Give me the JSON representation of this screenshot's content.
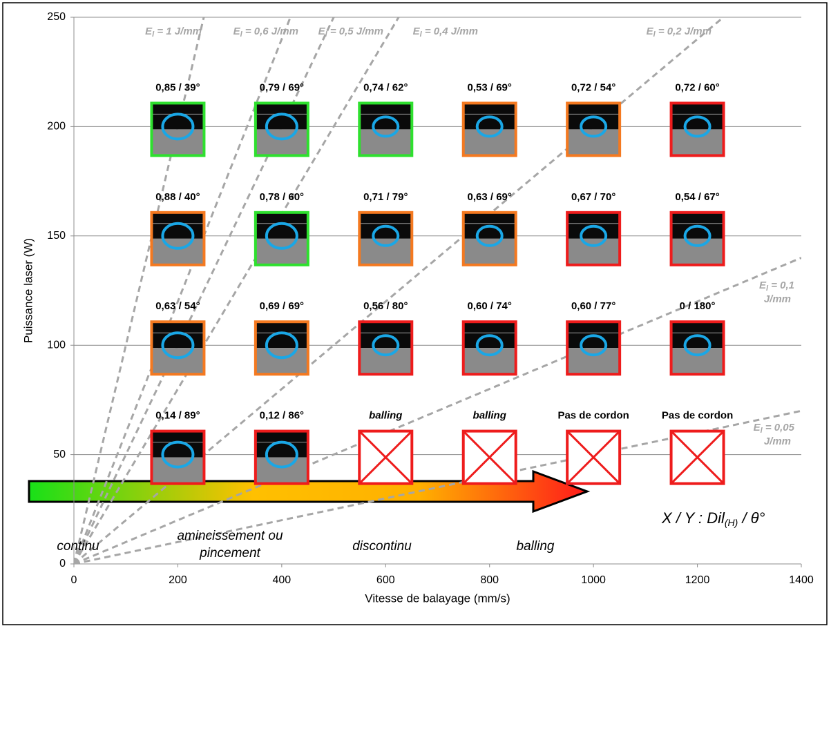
{
  "chart_data": {
    "type": "scatter",
    "x_label": "Vitesse de balayage (mm/s)",
    "y_label": "Puissance laser (W)",
    "xlim": [
      0,
      1400
    ],
    "xticks": [
      0,
      200,
      400,
      600,
      800,
      1000,
      1200,
      1400
    ],
    "ylim": [
      0,
      250
    ],
    "yticks": [
      0,
      50,
      100,
      150,
      200,
      250
    ],
    "grid": true,
    "energy_lines": [
      {
        "value": 1,
        "prefix": "E",
        "subscript": "l",
        "lines": [
          " = 1 J/mm"
        ]
      },
      {
        "value": 0.6,
        "prefix": "E",
        "subscript": "l",
        "lines": [
          " = 0,6 J/mm"
        ]
      },
      {
        "value": 0.5,
        "prefix": "E",
        "subscript": "l",
        "lines": [
          " = 0,5 J/mm"
        ]
      },
      {
        "value": 0.4,
        "prefix": "E",
        "subscript": "l",
        "lines": [
          " = 0,4 J/mm"
        ]
      },
      {
        "value": 0.2,
        "prefix": "E",
        "subscript": "l",
        "lines": [
          " = 0,2 J/mm"
        ]
      },
      {
        "value": 0.1,
        "prefix": "E",
        "subscript": "l",
        "lines": [
          " = 0,1",
          "J/mm"
        ]
      },
      {
        "value": 0.05,
        "prefix": "E",
        "subscript": "l",
        "lines": [
          " = 0,05",
          "J/mm"
        ]
      }
    ],
    "points": [
      {
        "x": 200,
        "y": 200,
        "label": "0,85 / 39°",
        "color": "#2ee02e",
        "image": true
      },
      {
        "x": 400,
        "y": 200,
        "label": "0,79 / 69°",
        "color": "#2ee02e",
        "image": true
      },
      {
        "x": 600,
        "y": 200,
        "label": "0,74 / 62°",
        "color": "#2ee02e",
        "image": true
      },
      {
        "x": 800,
        "y": 200,
        "label": "0,53 / 69°",
        "color": "#f47920",
        "image": true
      },
      {
        "x": 1000,
        "y": 200,
        "label": "0,72 / 54°",
        "color": "#f47920",
        "image": true
      },
      {
        "x": 1200,
        "y": 200,
        "label": "0,72 / 60°",
        "color": "#ee1c1c",
        "image": true
      },
      {
        "x": 200,
        "y": 150,
        "label": "0,88 / 40°",
        "color": "#f47920",
        "image": true
      },
      {
        "x": 400,
        "y": 150,
        "label": "0,78 / 60°",
        "color": "#2ee02e",
        "image": true
      },
      {
        "x": 600,
        "y": 150,
        "label": "0,71 / 79°",
        "color": "#f47920",
        "image": true
      },
      {
        "x": 800,
        "y": 150,
        "label": "0,63 / 69°",
        "color": "#f47920",
        "image": true
      },
      {
        "x": 1000,
        "y": 150,
        "label": "0,67 / 70°",
        "color": "#ee1c1c",
        "image": true
      },
      {
        "x": 1200,
        "y": 150,
        "label": "0,54 / 67°",
        "color": "#ee1c1c",
        "image": true
      },
      {
        "x": 200,
        "y": 100,
        "label": "0,63 / 54°",
        "color": "#f47920",
        "image": true
      },
      {
        "x": 400,
        "y": 100,
        "label": "0,69 / 69°",
        "color": "#f47920",
        "image": true
      },
      {
        "x": 600,
        "y": 100,
        "label": "0,56 / 80°",
        "color": "#ee1c1c",
        "image": true
      },
      {
        "x": 800,
        "y": 100,
        "label": "0,60 / 74°",
        "color": "#ee1c1c",
        "image": true
      },
      {
        "x": 1000,
        "y": 100,
        "label": "0,60 / 77°",
        "color": "#ee1c1c",
        "image": true
      },
      {
        "x": 1200,
        "y": 100,
        "label": "0 / 180°",
        "color": "#ee1c1c",
        "image": true
      },
      {
        "x": 200,
        "y": 50,
        "label": "0,14 / 89°",
        "color": "#ee1c1c",
        "image": true
      },
      {
        "x": 400,
        "y": 50,
        "label": "0,12 / 86°",
        "color": "#ee1c1c",
        "image": true
      },
      {
        "x": 600,
        "y": 50,
        "label": "balling",
        "italic": true,
        "color": "#ee1c1c",
        "image": false
      },
      {
        "x": 800,
        "y": 50,
        "label": "balling",
        "italic": true,
        "color": "#ee1c1c",
        "image": false
      },
      {
        "x": 1000,
        "y": 50,
        "label": "Pas de cordon",
        "color": "#ee1c1c",
        "image": false
      },
      {
        "x": 1200,
        "y": 50,
        "label": "Pas de cordon",
        "color": "#ee1c1c",
        "image": false
      }
    ],
    "legend": {
      "stages": [
        [
          "continu"
        ],
        [
          "amincissement ou",
          "pincement"
        ],
        [
          "discontinu"
        ],
        [
          "balling"
        ]
      ],
      "key": {
        "main": "X / Y : Dil",
        "subscript": "(H)",
        "rest": " / θ°"
      }
    }
  }
}
